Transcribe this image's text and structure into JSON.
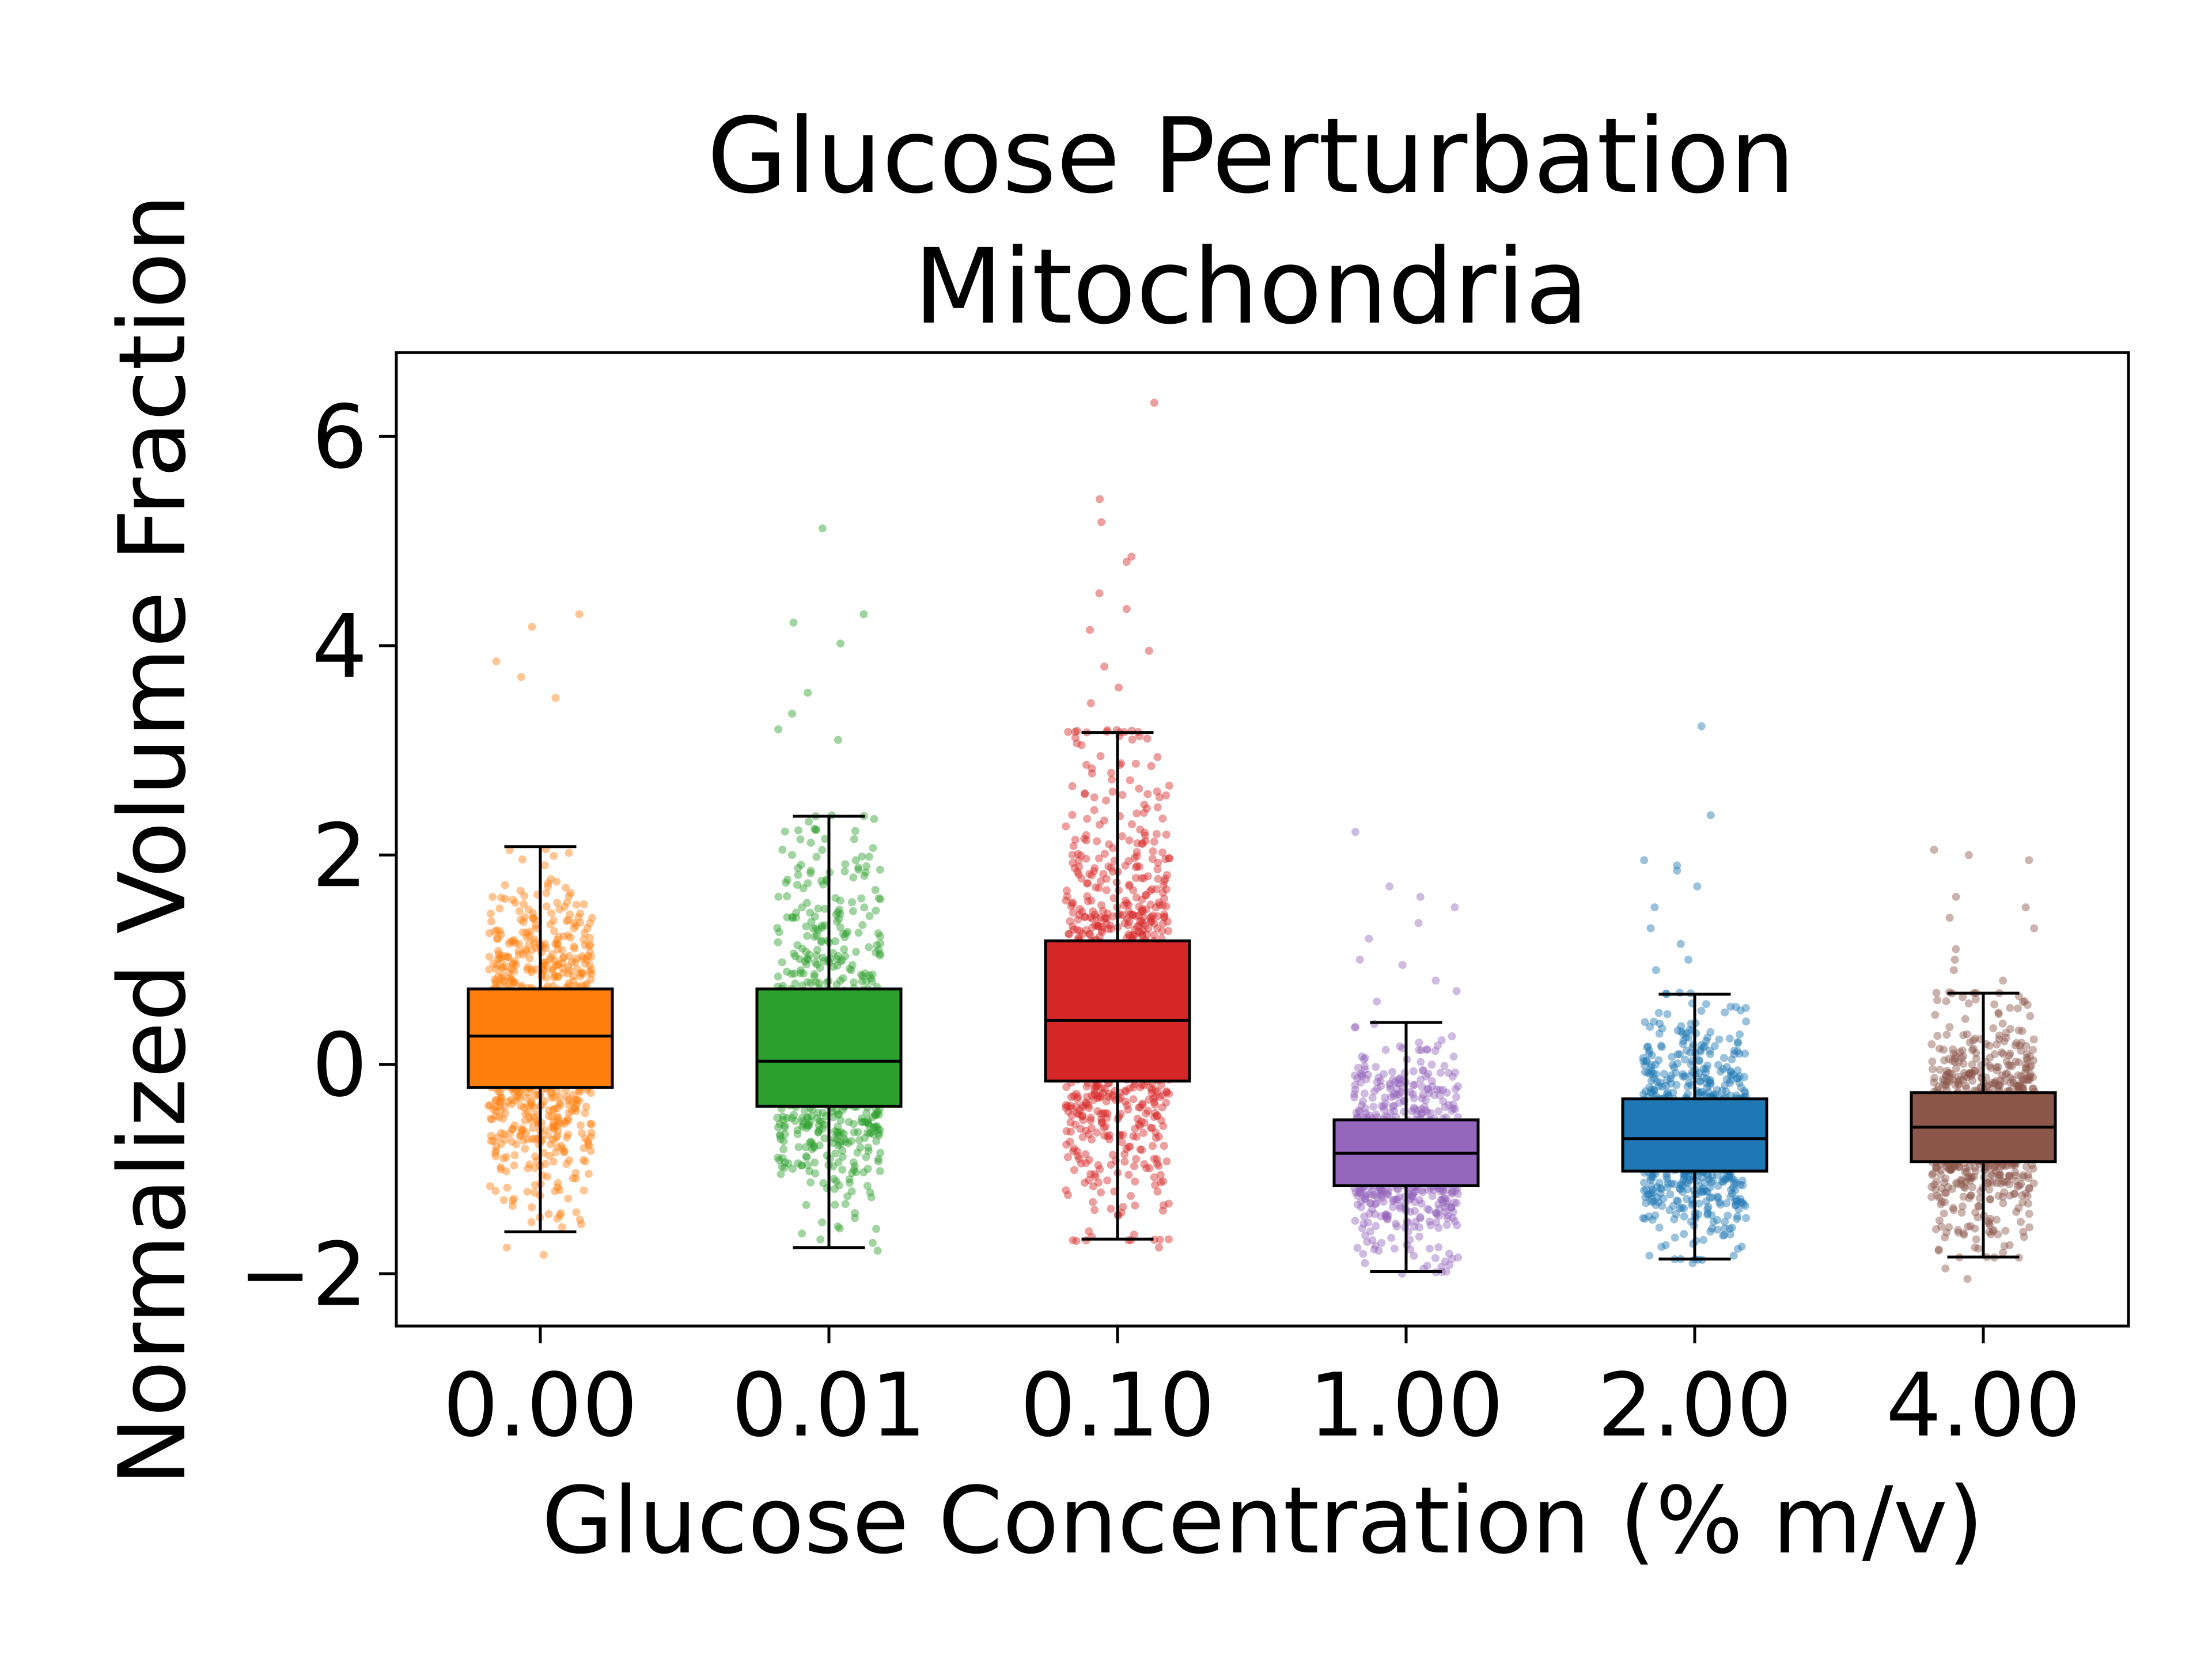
{
  "chart_data": {
    "type": "box",
    "title_lines": [
      "Glucose Perturbation",
      "Mitochondria"
    ],
    "xlabel": "Glucose Concentration (% m/v)",
    "ylabel": "Normalized Volume Fraction",
    "ylim": [
      -2.5,
      6.8
    ],
    "y_ticks": [
      {
        "value": -2,
        "label": "−2"
      },
      {
        "value": 0,
        "label": "0"
      },
      {
        "value": 2,
        "label": "2"
      },
      {
        "value": 4,
        "label": "4"
      },
      {
        "value": 6,
        "label": "6"
      }
    ],
    "grid": false,
    "legend": "none",
    "categories": [
      "0.00",
      "0.01",
      "0.10",
      "1.00",
      "2.00",
      "4.00"
    ],
    "series": [
      {
        "category": "0.00",
        "color": "#ff7f0e",
        "whisker_low": -1.6,
        "q1": -0.22,
        "median": 0.27,
        "q3": 0.72,
        "whisker_high": 2.08,
        "outliers_high": [
          4.3,
          4.18,
          3.85,
          3.7,
          3.5
        ],
        "outliers_low": [
          -1.75,
          -1.82
        ],
        "n_points": 900
      },
      {
        "category": "0.01",
        "color": "#2ca02c",
        "whisker_low": -1.75,
        "q1": -0.4,
        "median": 0.03,
        "q3": 0.72,
        "whisker_high": 2.37,
        "outliers_high": [
          5.12,
          4.3,
          4.22,
          4.02,
          3.55,
          3.35,
          3.2,
          3.1
        ],
        "outliers_low": [
          -1.78
        ],
        "n_points": 800
      },
      {
        "category": "0.10",
        "color": "#d62728",
        "whisker_low": -1.67,
        "q1": -0.16,
        "median": 0.42,
        "q3": 1.18,
        "whisker_high": 3.17,
        "outliers_high": [
          6.32,
          5.4,
          5.18,
          4.85,
          4.8,
          4.5,
          4.35,
          4.15,
          3.95,
          3.8,
          3.6,
          3.45
        ],
        "outliers_low": [
          -1.75
        ],
        "n_points": 1000
      },
      {
        "category": "1.00",
        "color": "#9467bd",
        "whisker_low": -1.98,
        "q1": -1.16,
        "median": -0.85,
        "q3": -0.53,
        "whisker_high": 0.4,
        "outliers_high": [
          2.22,
          1.7,
          1.6,
          1.5,
          1.35,
          1.2,
          1.0,
          0.95,
          0.8,
          0.7,
          0.6
        ],
        "outliers_low": [
          -2.0
        ],
        "n_points": 700
      },
      {
        "category": "2.00",
        "color": "#1f77b4",
        "whisker_low": -1.86,
        "q1": -1.02,
        "median": -0.71,
        "q3": -0.33,
        "whisker_high": 0.67,
        "outliers_high": [
          3.23,
          2.38,
          1.95,
          1.9,
          1.85,
          1.7,
          1.5,
          1.3,
          1.15,
          1.0,
          0.9
        ],
        "outliers_low": [
          -1.9
        ],
        "n_points": 850
      },
      {
        "category": "4.00",
        "color": "#8c564b",
        "whisker_low": -1.84,
        "q1": -0.93,
        "median": -0.6,
        "q3": -0.27,
        "whisker_high": 0.68,
        "outliers_high": [
          2.05,
          2.0,
          1.95,
          1.6,
          1.5,
          1.4,
          1.3,
          1.1,
          1.0,
          0.9,
          0.8
        ],
        "outliers_low": [
          -2.05,
          -1.95
        ],
        "n_points": 850
      }
    ]
  }
}
